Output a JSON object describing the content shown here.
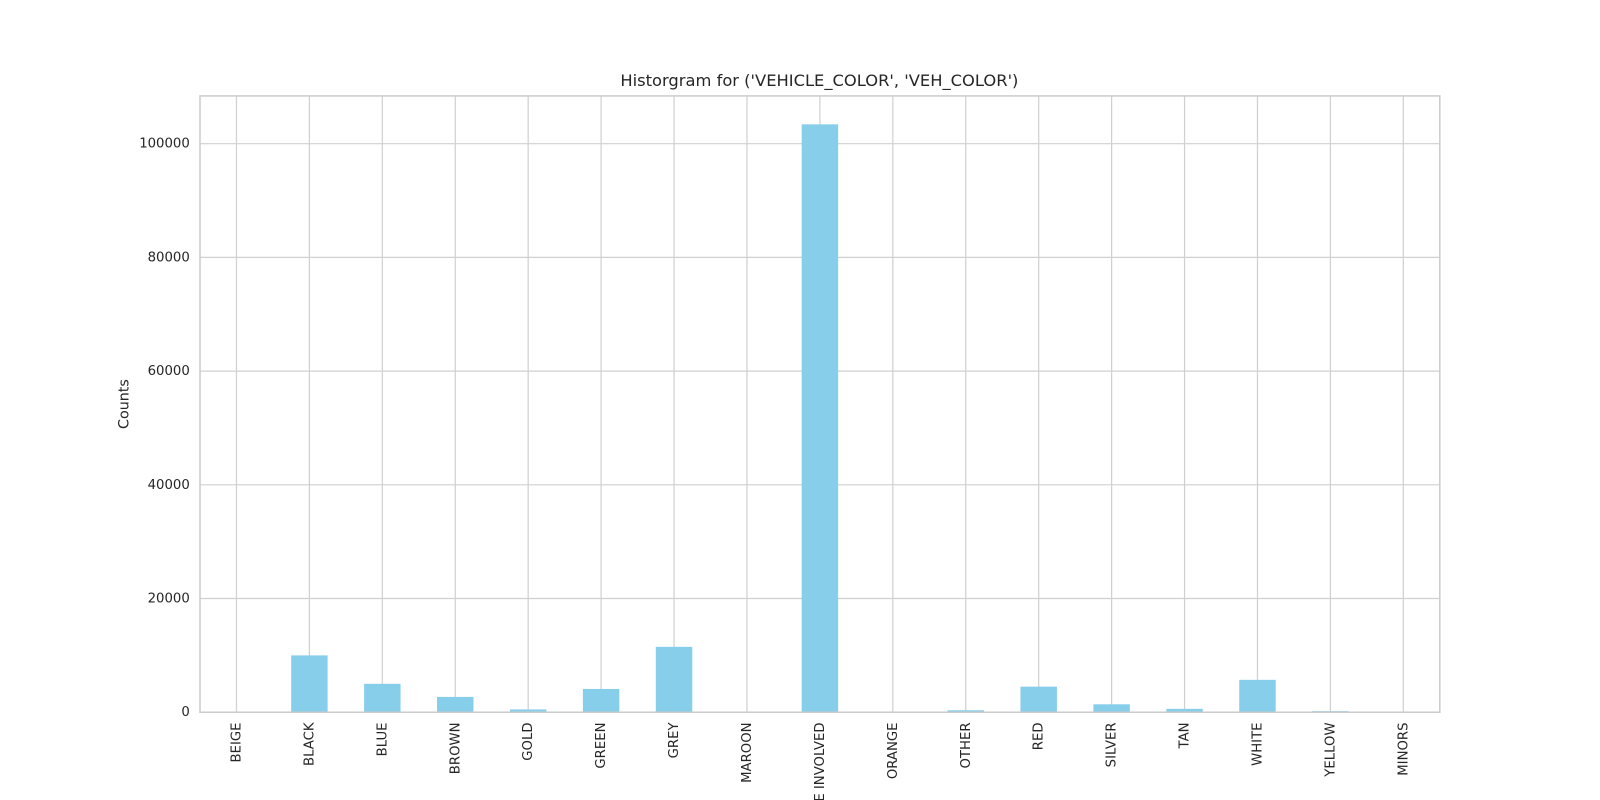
{
  "chart_data": {
    "type": "bar",
    "title": "Historgram for ('VEHICLE_COLOR', 'VEH_COLOR')",
    "y_label": "Counts",
    "categories": [
      "BEIGE",
      "BLACK",
      "BLUE",
      "BROWN",
      "GOLD",
      "GREEN",
      "GREY",
      "MAROON",
      "E INVOLVED",
      "ORANGE",
      "OTHER",
      "RED",
      "SILVER",
      "TAN",
      "WHITE",
      "YELLOW",
      "MINORS"
    ],
    "values": [
      100,
      10000,
      5000,
      2700,
      500,
      4100,
      11500,
      100,
      103400,
      50,
      350,
      4500,
      1400,
      600,
      5700,
      200,
      50
    ],
    "color": "#87ceeb",
    "ylim": [
      0,
      108400
    ],
    "yticks": [
      0,
      20000,
      40000,
      60000,
      80000,
      100000
    ],
    "grid": true
  }
}
